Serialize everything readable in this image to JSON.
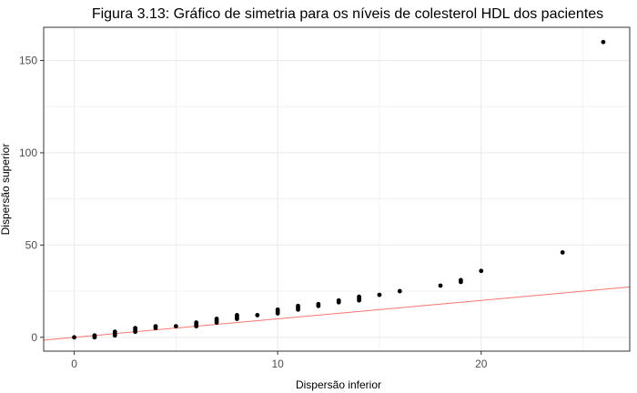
{
  "chart_data": {
    "type": "scatter",
    "title": "Figura 3.13: Gráfico de simetria para os níveis de colesterol HDL dos pacientes",
    "xlabel": "Dispersão inferior",
    "ylabel": "Dispersão superior",
    "xlim": [
      -1.5,
      27.3
    ],
    "ylim": [
      -7.5,
      168
    ],
    "x_ticks": [
      0,
      10,
      20
    ],
    "y_ticks": [
      0,
      50,
      100,
      150
    ],
    "x_tick_labels": [
      "0",
      "10",
      "20"
    ],
    "y_tick_labels": [
      "0",
      "50",
      "100",
      "150"
    ],
    "grid": true,
    "points": [
      {
        "x": 0,
        "y": 0
      },
      {
        "x": 1,
        "y": 0
      },
      {
        "x": 1,
        "y": 0.5
      },
      {
        "x": 1,
        "y": 1
      },
      {
        "x": 2,
        "y": 1
      },
      {
        "x": 2,
        "y": 2
      },
      {
        "x": 2,
        "y": 3
      },
      {
        "x": 3,
        "y": 3
      },
      {
        "x": 3,
        "y": 4
      },
      {
        "x": 3,
        "y": 5
      },
      {
        "x": 4,
        "y": 5
      },
      {
        "x": 4,
        "y": 6
      },
      {
        "x": 5,
        "y": 6
      },
      {
        "x": 6,
        "y": 6
      },
      {
        "x": 6,
        "y": 7
      },
      {
        "x": 6,
        "y": 8
      },
      {
        "x": 7,
        "y": 8
      },
      {
        "x": 7,
        "y": 9
      },
      {
        "x": 7,
        "y": 10
      },
      {
        "x": 8,
        "y": 10
      },
      {
        "x": 8,
        "y": 11
      },
      {
        "x": 8,
        "y": 12
      },
      {
        "x": 9,
        "y": 12
      },
      {
        "x": 10,
        "y": 13
      },
      {
        "x": 10,
        "y": 14
      },
      {
        "x": 10,
        "y": 15
      },
      {
        "x": 11,
        "y": 15
      },
      {
        "x": 11,
        "y": 16
      },
      {
        "x": 11,
        "y": 17
      },
      {
        "x": 12,
        "y": 17
      },
      {
        "x": 12,
        "y": 18
      },
      {
        "x": 13,
        "y": 19
      },
      {
        "x": 13,
        "y": 20
      },
      {
        "x": 14,
        "y": 20
      },
      {
        "x": 14,
        "y": 21
      },
      {
        "x": 14,
        "y": 22
      },
      {
        "x": 15,
        "y": 23
      },
      {
        "x": 16,
        "y": 25
      },
      {
        "x": 18,
        "y": 28
      },
      {
        "x": 19,
        "y": 30
      },
      {
        "x": 19,
        "y": 31
      },
      {
        "x": 20,
        "y": 36
      },
      {
        "x": 24,
        "y": 46
      },
      {
        "x": 26,
        "y": 160
      }
    ],
    "reference_line": {
      "slope": 1,
      "intercept": 0,
      "color": "#f8766d"
    },
    "point_color": "#000000",
    "grid_color": "#ebebeb",
    "panel_border_color": "#333333"
  }
}
